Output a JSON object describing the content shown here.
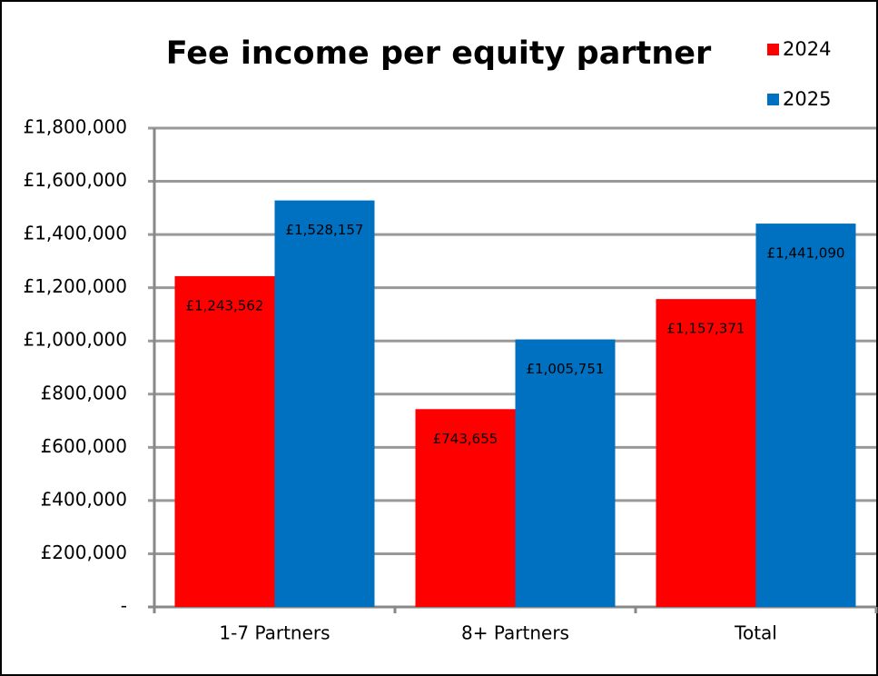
{
  "chart_data": {
    "type": "bar",
    "title": "Fee income per equity partner",
    "categories": [
      "1-7 Partners",
      "8+ Partners",
      "Total"
    ],
    "series": [
      {
        "name": "2024",
        "color": "#ff0000",
        "values": [
          1243562,
          743655,
          1157371
        ],
        "value_labels": [
          "£1,243,562",
          "£743,655",
          "£1,157,371"
        ]
      },
      {
        "name": "2025",
        "color": "#0070c0",
        "values": [
          1528157,
          1005751,
          1441090
        ],
        "value_labels": [
          "£1,528,157",
          "£1,005,751",
          "£1,441,090"
        ]
      }
    ],
    "ylim": [
      0,
      1800000
    ],
    "yticks": [
      {
        "value": 0,
        "label": "-"
      },
      {
        "value": 200000,
        "label": "£200,000"
      },
      {
        "value": 400000,
        "label": "£400,000"
      },
      {
        "value": 600000,
        "label": "£600,000"
      },
      {
        "value": 800000,
        "label": "£800,000"
      },
      {
        "value": 1000000,
        "label": "£1,000,000"
      },
      {
        "value": 1200000,
        "label": "£1,200,000"
      },
      {
        "value": 1400000,
        "label": "£1,400,000"
      },
      {
        "value": 1600000,
        "label": "£1,600,000"
      },
      {
        "value": 1800000,
        "label": "£1,800,000"
      }
    ],
    "grid": true,
    "legend": "top-right"
  }
}
